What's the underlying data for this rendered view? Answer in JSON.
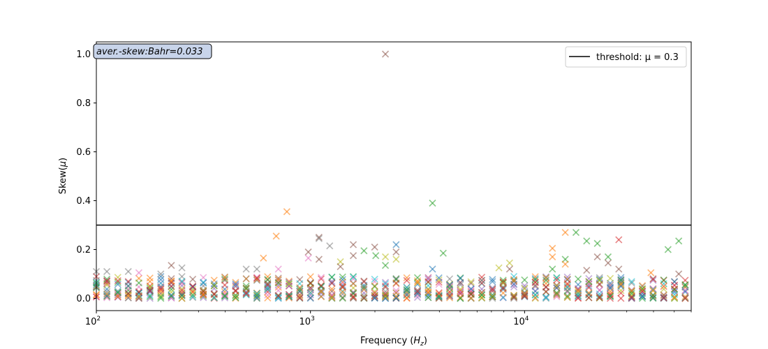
{
  "chart_data": {
    "type": "scatter",
    "xscale": "log",
    "xlim": [
      100,
      60000
    ],
    "ylim": [
      -0.05,
      1.05
    ],
    "xlabel": "Frequency (H_z)",
    "ylabel": "Skew(μ)",
    "x_ticks": [
      {
        "value": 100,
        "base": "10",
        "exp": "2"
      },
      {
        "value": 1000,
        "base": "10",
        "exp": "3"
      },
      {
        "value": 10000,
        "base": "10",
        "exp": "4"
      }
    ],
    "y_ticks": [
      {
        "value": 0.0,
        "label": "0.0"
      },
      {
        "value": 0.2,
        "label": "0.2"
      },
      {
        "value": 0.4,
        "label": "0.4"
      },
      {
        "value": 0.6,
        "label": "0.6"
      },
      {
        "value": 0.8,
        "label": "0.8"
      },
      {
        "value": 1.0,
        "label": "1.0"
      }
    ],
    "marker": "x",
    "threshold": {
      "value": 0.3,
      "label": "threshold: μ = 0.3",
      "color": "#000000"
    },
    "annotation": {
      "text": "aver.-skew:Bahr=0.033",
      "facecolor": "#c8d4ea"
    },
    "legend_position": "upper-right",
    "palette": [
      "#1f77b4",
      "#ff7f0e",
      "#2ca02c",
      "#d62728",
      "#9467bd",
      "#8c564b",
      "#e377c2",
      "#7f7f7f",
      "#bcbd22",
      "#17becf"
    ],
    "series_count": 14,
    "frequencies": [
      100,
      112,
      126,
      141,
      158,
      178,
      200,
      224,
      251,
      282,
      316,
      355,
      398,
      447,
      501,
      562,
      631,
      708,
      794,
      891,
      1000,
      1122,
      1259,
      1413,
      1585,
      1778,
      1995,
      2239,
      2512,
      2818,
      3162,
      3548,
      3981,
      4467,
      5012,
      5623,
      6310,
      7079,
      7943,
      8913,
      10000,
      11220,
      12589,
      14125,
      15849,
      17783,
      19953,
      22387,
      25119,
      28184,
      31623,
      35481,
      39811,
      44668,
      50119,
      56234
    ],
    "highlighted_points": [
      {
        "x": 2239,
        "y": 1.0,
        "color": "#8c564b"
      },
      {
        "x": 3715,
        "y": 0.39,
        "color": "#2ca02c"
      },
      {
        "x": 776,
        "y": 0.355,
        "color": "#ff7f0e"
      },
      {
        "x": 100,
        "y": 0.11,
        "color": "#7f7f7f"
      },
      {
        "x": 112,
        "y": 0.11,
        "color": "#7f7f7f"
      },
      {
        "x": 141,
        "y": 0.11,
        "color": "#7f7f7f"
      },
      {
        "x": 158,
        "y": 0.105,
        "color": "#e377c2"
      },
      {
        "x": 200,
        "y": 0.1,
        "color": "#7f7f7f"
      },
      {
        "x": 224,
        "y": 0.135,
        "color": "#8c564b"
      },
      {
        "x": 251,
        "y": 0.125,
        "color": "#7f7f7f"
      },
      {
        "x": 501,
        "y": 0.12,
        "color": "#7f7f7f"
      },
      {
        "x": 562,
        "y": 0.12,
        "color": "#7f7f7f"
      },
      {
        "x": 603,
        "y": 0.165,
        "color": "#ff7f0e"
      },
      {
        "x": 692,
        "y": 0.255,
        "color": "#ff7f0e"
      },
      {
        "x": 708,
        "y": 0.12,
        "color": "#e377c2"
      },
      {
        "x": 977,
        "y": 0.19,
        "color": "#8c564b"
      },
      {
        "x": 977,
        "y": 0.165,
        "color": "#e377c2"
      },
      {
        "x": 1096,
        "y": 0.25,
        "color": "#8c564b"
      },
      {
        "x": 1096,
        "y": 0.245,
        "color": "#7f7f7f"
      },
      {
        "x": 1096,
        "y": 0.16,
        "color": "#8c564b"
      },
      {
        "x": 1230,
        "y": 0.215,
        "color": "#7f7f7f"
      },
      {
        "x": 1380,
        "y": 0.15,
        "color": "#bcbd22"
      },
      {
        "x": 1380,
        "y": 0.13,
        "color": "#8c564b"
      },
      {
        "x": 1585,
        "y": 0.22,
        "color": "#8c564b"
      },
      {
        "x": 1585,
        "y": 0.175,
        "color": "#8c564b"
      },
      {
        "x": 1778,
        "y": 0.195,
        "color": "#2ca02c"
      },
      {
        "x": 1995,
        "y": 0.21,
        "color": "#8c564b"
      },
      {
        "x": 2018,
        "y": 0.175,
        "color": "#2ca02c"
      },
      {
        "x": 2239,
        "y": 0.17,
        "color": "#bcbd22"
      },
      {
        "x": 2239,
        "y": 0.135,
        "color": "#2ca02c"
      },
      {
        "x": 2512,
        "y": 0.22,
        "color": "#1f77b4"
      },
      {
        "x": 2512,
        "y": 0.19,
        "color": "#8c564b"
      },
      {
        "x": 2512,
        "y": 0.16,
        "color": "#bcbd22"
      },
      {
        "x": 3715,
        "y": 0.12,
        "color": "#1f77b4"
      },
      {
        "x": 4169,
        "y": 0.185,
        "color": "#2ca02c"
      },
      {
        "x": 7586,
        "y": 0.125,
        "color": "#bcbd22"
      },
      {
        "x": 8511,
        "y": 0.145,
        "color": "#bcbd22"
      },
      {
        "x": 8511,
        "y": 0.12,
        "color": "#8c564b"
      },
      {
        "x": 13490,
        "y": 0.205,
        "color": "#ff7f0e"
      },
      {
        "x": 13490,
        "y": 0.17,
        "color": "#ff7f0e"
      },
      {
        "x": 13490,
        "y": 0.12,
        "color": "#2ca02c"
      },
      {
        "x": 15488,
        "y": 0.27,
        "color": "#ff7f0e"
      },
      {
        "x": 15488,
        "y": 0.16,
        "color": "#2ca02c"
      },
      {
        "x": 15488,
        "y": 0.14,
        "color": "#ff7f0e"
      },
      {
        "x": 17378,
        "y": 0.27,
        "color": "#2ca02c"
      },
      {
        "x": 19498,
        "y": 0.235,
        "color": "#2ca02c"
      },
      {
        "x": 19498,
        "y": 0.115,
        "color": "#8c564b"
      },
      {
        "x": 21878,
        "y": 0.225,
        "color": "#2ca02c"
      },
      {
        "x": 21878,
        "y": 0.17,
        "color": "#8c564b"
      },
      {
        "x": 24547,
        "y": 0.17,
        "color": "#2ca02c"
      },
      {
        "x": 24547,
        "y": 0.145,
        "color": "#8c564b"
      },
      {
        "x": 27542,
        "y": 0.24,
        "color": "#d62728"
      },
      {
        "x": 27542,
        "y": 0.12,
        "color": "#8c564b"
      },
      {
        "x": 38905,
        "y": 0.105,
        "color": "#ff7f0e"
      },
      {
        "x": 46774,
        "y": 0.2,
        "color": "#2ca02c"
      },
      {
        "x": 52481,
        "y": 0.235,
        "color": "#2ca02c"
      },
      {
        "x": 52481,
        "y": 0.1,
        "color": "#8c564b"
      }
    ]
  }
}
